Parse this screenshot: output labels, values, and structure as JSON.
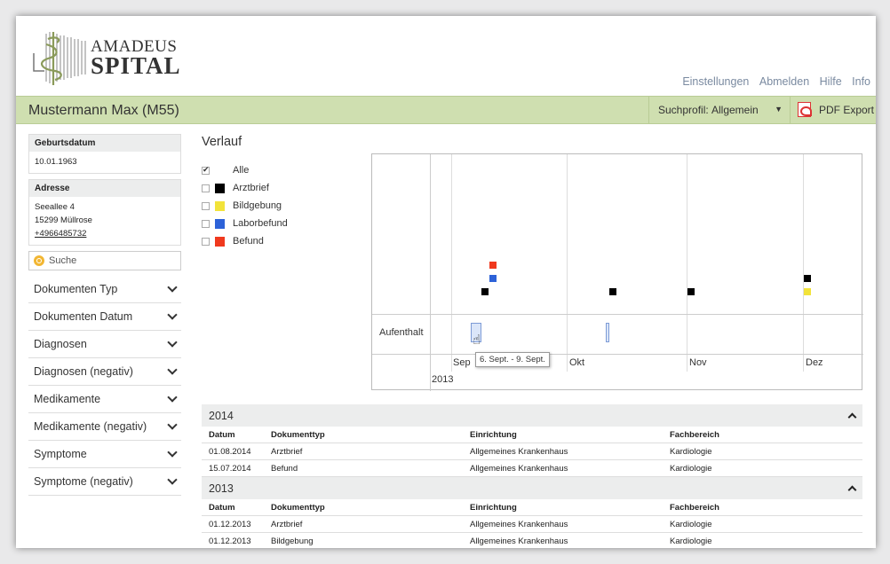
{
  "header": {
    "logo_top": "AMADEUS",
    "logo_bottom": "SPITAL",
    "nav": [
      "Einstellungen",
      "Abmelden",
      "Hilfe",
      "Info"
    ]
  },
  "patient": {
    "name": "Mustermann Max (M55)",
    "profile_label": "Suchprofil:",
    "profile_value": "Allgemein",
    "pdf_label": "PDF Export"
  },
  "sidebar": {
    "birth_label": "Geburtsdatum",
    "birth_value": "10.01.1963",
    "address_label": "Adresse",
    "address_street": "Seeallee 4",
    "address_city": "15299 Müllrose",
    "address_phone": "+4966485732",
    "search_placeholder": "Suche",
    "filters": [
      "Dokumenten Typ",
      "Dokumenten Datum",
      "Diagnosen",
      "Diagnosen (negativ)",
      "Medikamente",
      "Medikamente (negativ)",
      "Symptome",
      "Symptome (negativ)"
    ]
  },
  "verlauf": {
    "title": "Verlauf",
    "legend": [
      {
        "label": "Alle",
        "color": "",
        "checked": true
      },
      {
        "label": "Arztbrief",
        "color": "#000000",
        "checked": false
      },
      {
        "label": "Bildgebung",
        "color": "#f2e33a",
        "checked": false
      },
      {
        "label": "Laborbefund",
        "color": "#2d62d8",
        "checked": false
      },
      {
        "label": "Befund",
        "color": "#f0391e",
        "checked": false
      }
    ],
    "row_label": "Aufenthalt",
    "months": [
      "Sep",
      "Okt",
      "Nov",
      "Dez"
    ],
    "year": "2013",
    "tooltip": "6. Sept. - 9. Sept."
  },
  "tables": [
    {
      "year": "2014",
      "headers": [
        "Datum",
        "Dokumenttyp",
        "Einrichtung",
        "Fachbereich"
      ],
      "rows": [
        [
          "01.08.2014",
          "Arztbrief",
          "Allgemeines Krankenhaus",
          "Kardiologie"
        ],
        [
          "15.07.2014",
          "Befund",
          "Allgemeines Krankenhaus",
          "Kardiologie"
        ]
      ]
    },
    {
      "year": "2013",
      "headers": [
        "Datum",
        "Dokumenttyp",
        "Einrichtung",
        "Fachbereich"
      ],
      "rows": [
        [
          "01.12.2013",
          "Arztbrief",
          "Allgemeines Krankenhaus",
          "Kardiologie"
        ],
        [
          "01.12.2013",
          "Bildgebung",
          "Allgemeines Krankenhaus",
          "Kardiologie"
        ]
      ]
    }
  ]
}
